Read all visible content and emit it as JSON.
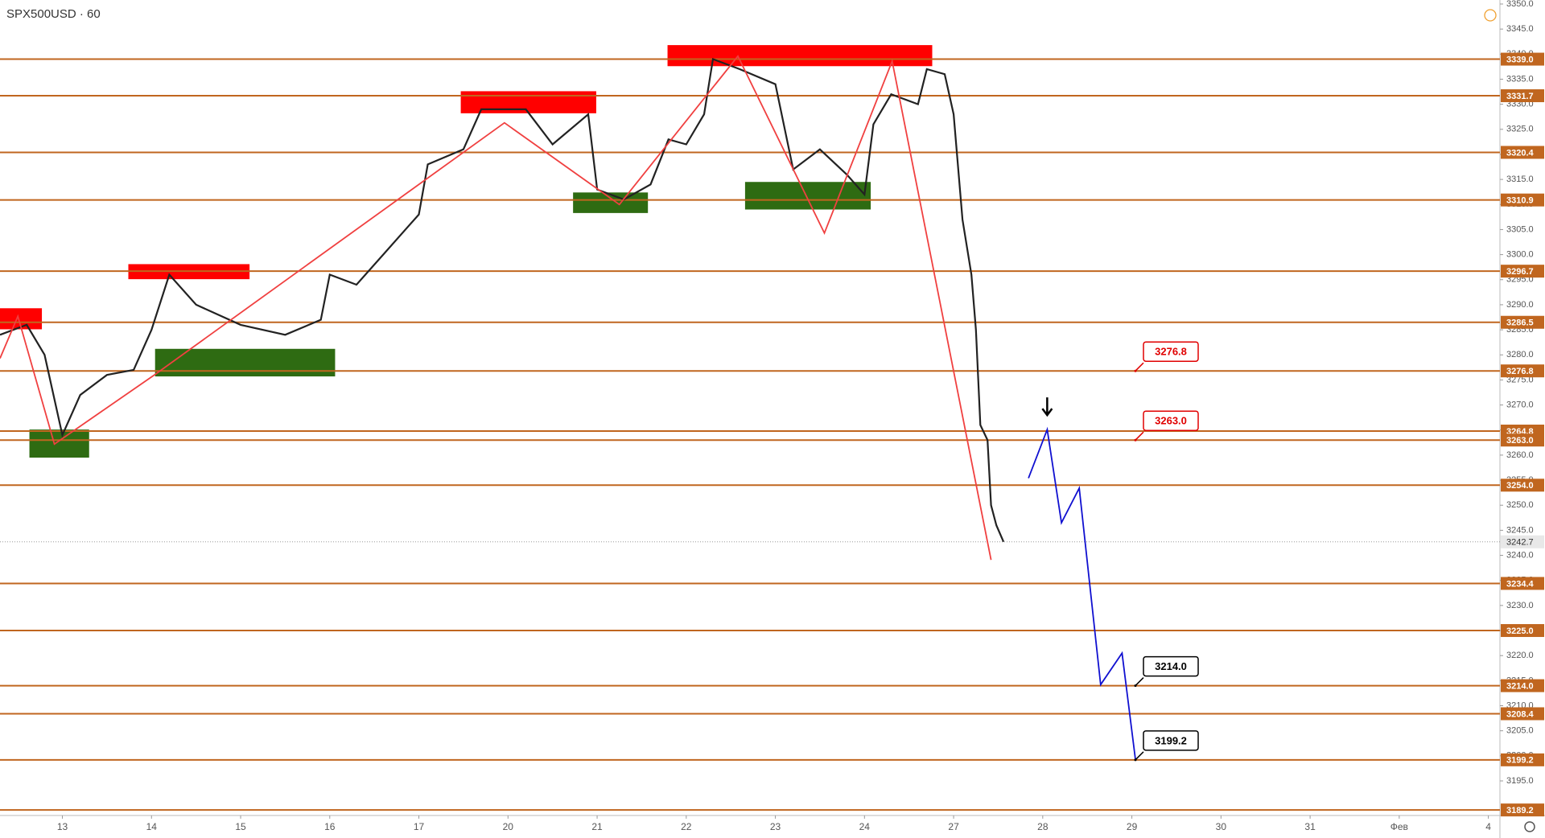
{
  "chart_data": {
    "type": "line",
    "title": "SPX500USD · 60",
    "xlim": [
      -0.7,
      16.13
    ],
    "ylim": [
      3188.1,
      3350.8
    ],
    "xticks": [
      {
        "value": 0,
        "label": "13"
      },
      {
        "value": 1,
        "label": "14"
      },
      {
        "value": 2,
        "label": "15"
      },
      {
        "value": 3,
        "label": "16"
      },
      {
        "value": 4,
        "label": "17"
      },
      {
        "value": 5,
        "label": "20"
      },
      {
        "value": 6,
        "label": "21"
      },
      {
        "value": 7,
        "label": "22"
      },
      {
        "value": 8,
        "label": "23"
      },
      {
        "value": 9,
        "label": "24"
      },
      {
        "value": 10,
        "label": "27"
      },
      {
        "value": 11,
        "label": "28"
      },
      {
        "value": 12,
        "label": "29"
      },
      {
        "value": 13,
        "label": "30"
      },
      {
        "value": 14,
        "label": "31"
      },
      {
        "value": 15,
        "label": "Фев"
      },
      {
        "value": 16,
        "label": "4"
      }
    ],
    "yticks": [
      {
        "value": 3195,
        "label": "3195.0"
      },
      {
        "value": 3200,
        "label": "3200.0"
      },
      {
        "value": 3205,
        "label": "3205.0"
      },
      {
        "value": 3210,
        "label": "3210.0"
      },
      {
        "value": 3215,
        "label": "3215.0"
      },
      {
        "value": 3220,
        "label": "3220.0"
      },
      {
        "value": 3225,
        "label": "3225.0"
      },
      {
        "value": 3230,
        "label": "3230.0"
      },
      {
        "value": 3235,
        "label": "3235.0"
      },
      {
        "value": 3240,
        "label": "3240.0"
      },
      {
        "value": 3245,
        "label": "3245.0"
      },
      {
        "value": 3250,
        "label": "3250.0"
      },
      {
        "value": 3255,
        "label": "3255.0"
      },
      {
        "value": 3260,
        "label": "3260.0"
      },
      {
        "value": 3265,
        "label": "3265.0"
      },
      {
        "value": 3270,
        "label": "3270.0"
      },
      {
        "value": 3275,
        "label": "3275.0"
      },
      {
        "value": 3280,
        "label": "3280.0"
      },
      {
        "value": 3285,
        "label": "3285.0"
      },
      {
        "value": 3290,
        "label": "3290.0"
      },
      {
        "value": 3295,
        "label": "3295.0"
      },
      {
        "value": 3300,
        "label": "3300.0"
      },
      {
        "value": 3305,
        "label": "3305.0"
      },
      {
        "value": 3310,
        "label": "3310.0"
      },
      {
        "value": 3315,
        "label": "3315.0"
      },
      {
        "value": 3320,
        "label": "3320.0"
      },
      {
        "value": 3325,
        "label": "3325.0"
      },
      {
        "value": 3330,
        "label": "3330.0"
      },
      {
        "value": 3335,
        "label": "3335.0"
      },
      {
        "value": 3340,
        "label": "3340.0"
      },
      {
        "value": 3345,
        "label": "3345.0"
      },
      {
        "value": 3350,
        "label": "3350.0"
      }
    ],
    "series": [
      {
        "color": "#222222",
        "x": [
          -0.7,
          -0.4,
          -0.2,
          0,
          0.2,
          0.5,
          0.8,
          1.0,
          1.2,
          1.5,
          2.0,
          2.5,
          2.9,
          3.0,
          3.3,
          3.6,
          4.0,
          4.1,
          4.5,
          4.7,
          5.2,
          5.5,
          5.9,
          6.0,
          6.3,
          6.6,
          6.8,
          7.0,
          7.2,
          7.3,
          7.6,
          8.0,
          8.2,
          8.5,
          8.8,
          9.0,
          9.1,
          9.3,
          9.6,
          9.7,
          9.9,
          10.0,
          10.1,
          10.2,
          10.25,
          10.3,
          10.38,
          10.42,
          10.48,
          10.56
        ],
        "values": [
          3284,
          3286,
          3280,
          3264,
          3272,
          3276,
          3277,
          3285,
          3296,
          3290,
          3286,
          3284,
          3287,
          3296,
          3294,
          3300,
          3308,
          3318,
          3321,
          3329,
          3329,
          3322,
          3328,
          3313,
          3311,
          3314,
          3323,
          3322,
          3328,
          3339,
          3337,
          3334,
          3317,
          3321,
          3316,
          3312,
          3326,
          3332,
          3330,
          3337,
          3336,
          3328,
          3307,
          3296,
          3285,
          3266,
          3263,
          3250,
          3246,
          3242.7
        ]
      },
      {
        "color": "#f04040",
        "x": [
          -0.7,
          -0.5,
          -0.09,
          1.04,
          4.96,
          6.25,
          7.58,
          8.55,
          9.31,
          10.42
        ],
        "values": [
          3279.3,
          3287.7,
          3262.2,
          3276.1,
          3326.3,
          3310.0,
          3339.6,
          3304.3,
          3338.6,
          3239.1
        ]
      },
      {
        "color": "#1010d0",
        "x": [
          10.84,
          11.05,
          11.21,
          11.41,
          11.65,
          11.89,
          12.04
        ],
        "values": [
          3255.4,
          3265.1,
          3246.5,
          3253.4,
          3214.2,
          3220.5,
          3199.3
        ]
      }
    ],
    "level_color": "#c0661f",
    "levels": [
      {
        "value": 3339,
        "label": "3339.0"
      },
      {
        "value": 3331.7,
        "label": "3331.7"
      },
      {
        "value": 3320.4,
        "label": "3320.4"
      },
      {
        "value": 3310.9,
        "label": "3310.9"
      },
      {
        "value": 3296.7,
        "label": "3296.7"
      },
      {
        "value": 3286.5,
        "label": "3286.5"
      },
      {
        "value": 3276.8,
        "label": "3276.8"
      },
      {
        "value": 3264.8,
        "label": "3264.8"
      },
      {
        "value": 3263,
        "label": "3263.0"
      },
      {
        "value": 3254,
        "label": "3254.0"
      },
      {
        "value": 3234.4,
        "label": "3234.4"
      },
      {
        "value": 3225,
        "label": "3225.0"
      },
      {
        "value": 3214,
        "label": "3214.0"
      },
      {
        "value": 3208.4,
        "label": "3208.4"
      },
      {
        "value": 3199.2,
        "label": "3199.2"
      },
      {
        "value": 3189.2,
        "label": "3189.2"
      }
    ],
    "last_price": {
      "value": 3242.7,
      "label": "3242.7"
    },
    "zones": [
      {
        "color": "#ff0000",
        "x": [
          -0.7,
          -0.23
        ],
        "y": [
          3285.1,
          3289.3
        ]
      },
      {
        "color": "#ff0000",
        "x": [
          0.74,
          2.1
        ],
        "y": [
          3295.1,
          3298.1
        ]
      },
      {
        "color": "#ff0000",
        "x": [
          4.47,
          5.99
        ],
        "y": [
          3328.2,
          3332.6
        ]
      },
      {
        "color": "#ff0000",
        "x": [
          6.79,
          9.76
        ],
        "y": [
          3337.6,
          3341.8
        ]
      },
      {
        "color": "#2e6b12",
        "x": [
          -0.37,
          0.3
        ],
        "y": [
          3259.5,
          3265.1
        ]
      },
      {
        "color": "#2e6b12",
        "x": [
          1.04,
          3.06
        ],
        "y": [
          3275.7,
          3281.2
        ]
      },
      {
        "color": "#2e6b12",
        "x": [
          5.73,
          6.57
        ],
        "y": [
          3308.3,
          3312.4
        ]
      },
      {
        "color": "#2e6b12",
        "x": [
          7.66,
          9.07
        ],
        "y": [
          3309.0,
          3314.5
        ]
      }
    ],
    "callouts": [
      {
        "x": 12.04,
        "value": 3276.8,
        "label": "3276.8",
        "color": "#e00000"
      },
      {
        "x": 12.04,
        "value": 3263,
        "label": "3263.0",
        "color": "#e00000"
      },
      {
        "x": 12.04,
        "value": 3214,
        "label": "3214.0",
        "color": "#000000"
      },
      {
        "x": 12.04,
        "value": 3199.2,
        "label": "3199.2",
        "color": "#000000"
      }
    ]
  }
}
